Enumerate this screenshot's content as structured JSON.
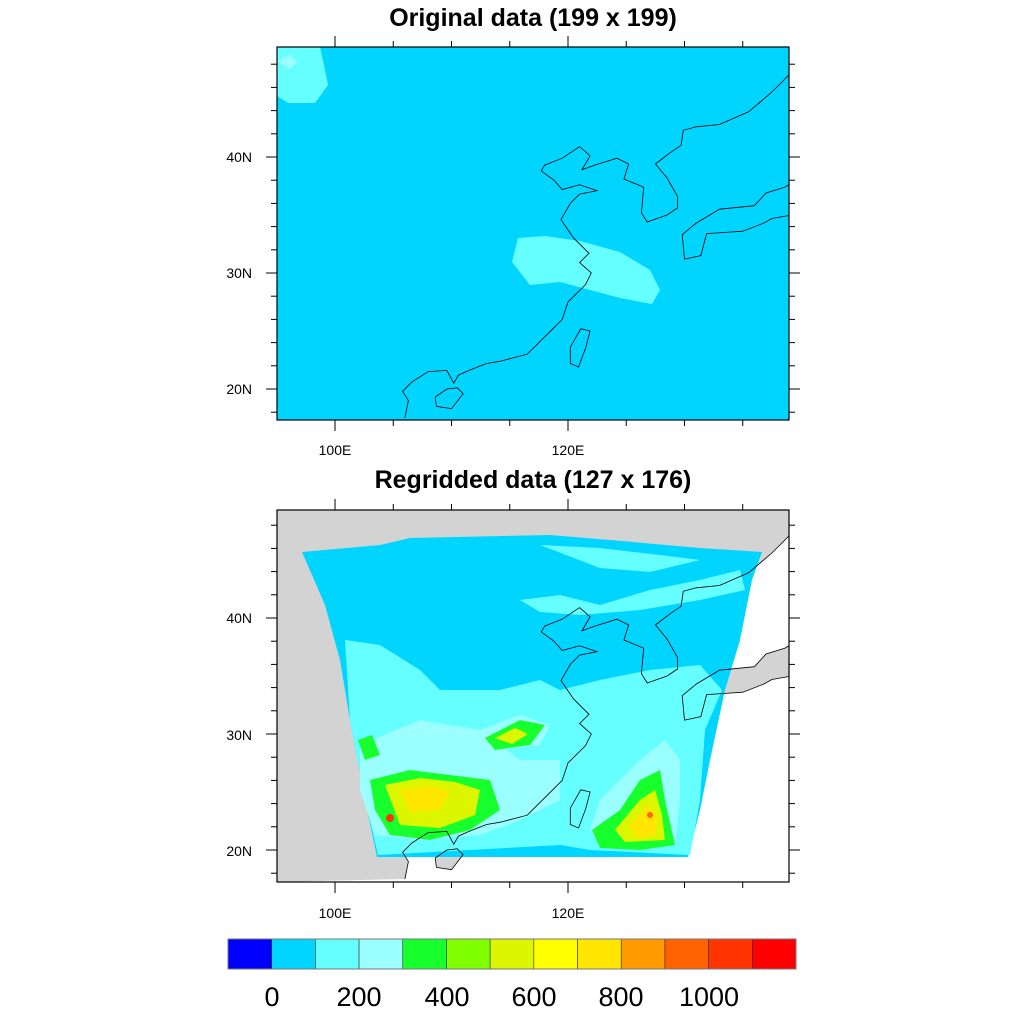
{
  "top_panel": {
    "title": "Original data (199 x 199)",
    "lat_labels": [
      "40N",
      "30N",
      "20N"
    ],
    "lon_labels": [
      "100E",
      "120E"
    ],
    "lon_range": [
      95,
      139
    ],
    "lat_range": [
      17.5,
      49.5
    ]
  },
  "bottom_panel": {
    "title": "Regridded data (127 x 176)",
    "lat_labels": [
      "40N",
      "30N",
      "20N"
    ],
    "lon_labels": [
      "100E",
      "120E"
    ]
  },
  "colorbar": {
    "colors": [
      "#0000ff",
      "#00d5ff",
      "#66ffff",
      "#9cffff",
      "#18ff2e",
      "#80ff00",
      "#dcf600",
      "#ffff00",
      "#ffe600",
      "#ff9b00",
      "#ff6200",
      "#ff3400",
      "#ff0000"
    ],
    "labels": [
      "0",
      "200",
      "400",
      "600",
      "800",
      "1000"
    ],
    "levels": [
      0,
      100,
      200,
      300,
      400,
      500,
      600,
      700,
      800,
      900,
      1000,
      1100
    ]
  },
  "colors": {
    "missing": "#d3d3d3",
    "ocean": "#ffffff"
  }
}
